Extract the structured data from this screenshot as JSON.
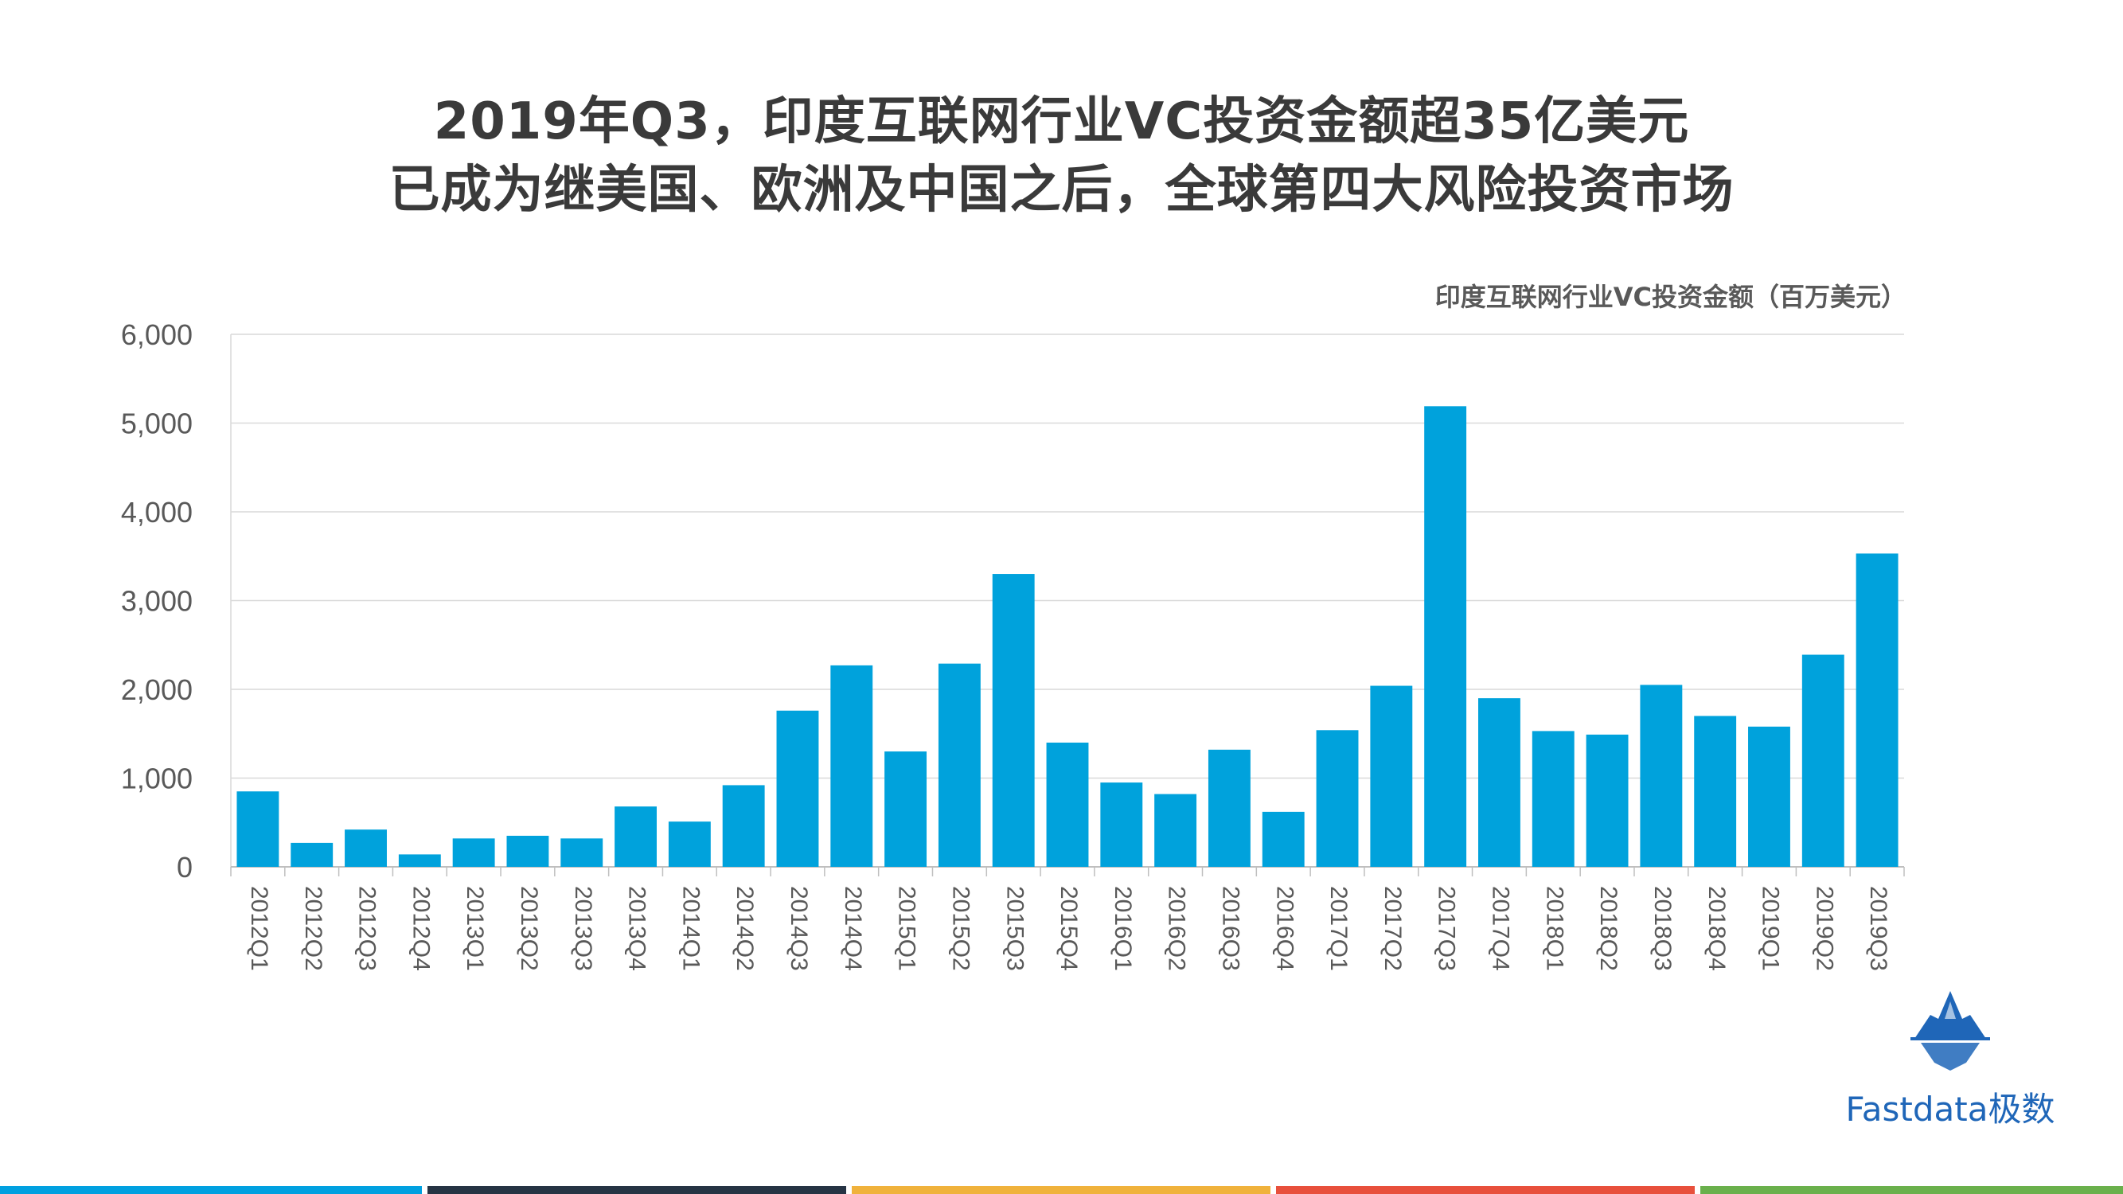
{
  "title": {
    "line1": "2019年Q3，印度互联网行业VC投资金额超35亿美元",
    "line2": "已成为继美国、欧洲及中国之后，全球第四大风险投资市场"
  },
  "brand": {
    "name": "Fastdata极数",
    "icon": "iceberg-logo-icon",
    "color": "#1f66b8"
  },
  "footer_colors": [
    "#00a0e0",
    "#263444",
    "#f0b23c",
    "#e8503c",
    "#6ab04c"
  ],
  "chart_data": {
    "type": "bar",
    "series_label": "印度互联网行业VC投资金额（百万美元）",
    "categories": [
      "2012Q1",
      "2012Q2",
      "2012Q3",
      "2012Q4",
      "2013Q1",
      "2013Q2",
      "2013Q3",
      "2013Q4",
      "2014Q1",
      "2014Q2",
      "2014Q3",
      "2014Q4",
      "2015Q1",
      "2015Q2",
      "2015Q3",
      "2015Q4",
      "2016Q1",
      "2016Q2",
      "2016Q3",
      "2016Q4",
      "2017Q1",
      "2017Q2",
      "2017Q3",
      "2017Q4",
      "2018Q1",
      "2018Q2",
      "2018Q3",
      "2018Q4",
      "2019Q1",
      "2019Q2",
      "2019Q3"
    ],
    "values": [
      850,
      270,
      420,
      140,
      320,
      350,
      320,
      680,
      510,
      920,
      1760,
      2270,
      1300,
      2290,
      3300,
      1400,
      950,
      820,
      1320,
      620,
      1540,
      2040,
      5190,
      1900,
      1530,
      1490,
      2050,
      1700,
      1580,
      2390,
      3530
    ],
    "ylim": [
      0,
      6000
    ],
    "yticks": [
      0,
      1000,
      2000,
      3000,
      4000,
      5000,
      6000
    ],
    "ytick_labels": [
      "0",
      "1,000",
      "2,000",
      "3,000",
      "4,000",
      "5,000",
      "6,000"
    ],
    "grid": true,
    "bar_color": "#00a2dc",
    "xlabel": "",
    "ylabel": ""
  }
}
